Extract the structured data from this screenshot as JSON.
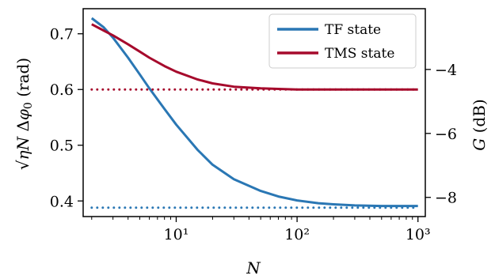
{
  "chart_data": {
    "type": "line",
    "xlabel": "N",
    "ylabel": "√(ηN) Δφ₀ (rad)",
    "y2label": "G (dB)",
    "xscale": "log",
    "xlim": [
      1.7,
      1150
    ],
    "ylim": [
      0.372,
      0.745
    ],
    "y2lim": [
      -8.6,
      -2.1
    ],
    "x_ticks": [
      {
        "value": 10,
        "label": "10¹"
      },
      {
        "value": 100,
        "label": "10²"
      },
      {
        "value": 1000,
        "label": "10³"
      }
    ],
    "y_ticks": [
      {
        "value": 0.4,
        "label": "0.4"
      },
      {
        "value": 0.5,
        "label": "0.5"
      },
      {
        "value": 0.6,
        "label": "0.6"
      },
      {
        "value": 0.7,
        "label": "0.7"
      }
    ],
    "y2_ticks": [
      {
        "value": -4,
        "label": "−4"
      },
      {
        "value": -6,
        "label": "−6"
      },
      {
        "value": -8,
        "label": "−8"
      }
    ],
    "legend_position": "top-right",
    "grid": false,
    "series": [
      {
        "name": "TF state",
        "color": "#2a77b4",
        "style": "solid",
        "x": [
          2,
          2.5,
          3,
          4,
          5,
          6,
          8,
          10,
          15,
          20,
          30,
          50,
          70,
          100,
          150,
          200,
          300,
          500,
          700,
          1000
        ],
        "y": [
          0.728,
          0.712,
          0.693,
          0.657,
          0.627,
          0.602,
          0.565,
          0.537,
          0.492,
          0.465,
          0.439,
          0.418,
          0.408,
          0.401,
          0.396,
          0.394,
          0.392,
          0.391,
          0.391,
          0.391
        ]
      },
      {
        "name": "TMS state",
        "color": "#a60a2c",
        "style": "solid",
        "x": [
          2,
          2.5,
          3,
          4,
          5,
          6,
          8,
          10,
          15,
          20,
          30,
          50,
          70,
          100,
          150,
          200,
          300,
          500,
          700,
          1000
        ],
        "y": [
          0.717,
          0.706,
          0.697,
          0.681,
          0.668,
          0.657,
          0.642,
          0.632,
          0.618,
          0.611,
          0.605,
          0.602,
          0.601,
          0.6,
          0.6,
          0.6,
          0.6,
          0.6,
          0.6,
          0.6
        ]
      },
      {
        "color": "#a60a2c",
        "style": "dotted",
        "x": [
          2,
          1000
        ],
        "y": [
          0.6,
          0.6
        ]
      },
      {
        "color": "#2a77b4",
        "style": "dotted",
        "x": [
          2,
          1000
        ],
        "y": [
          0.388,
          0.388
        ]
      }
    ]
  }
}
